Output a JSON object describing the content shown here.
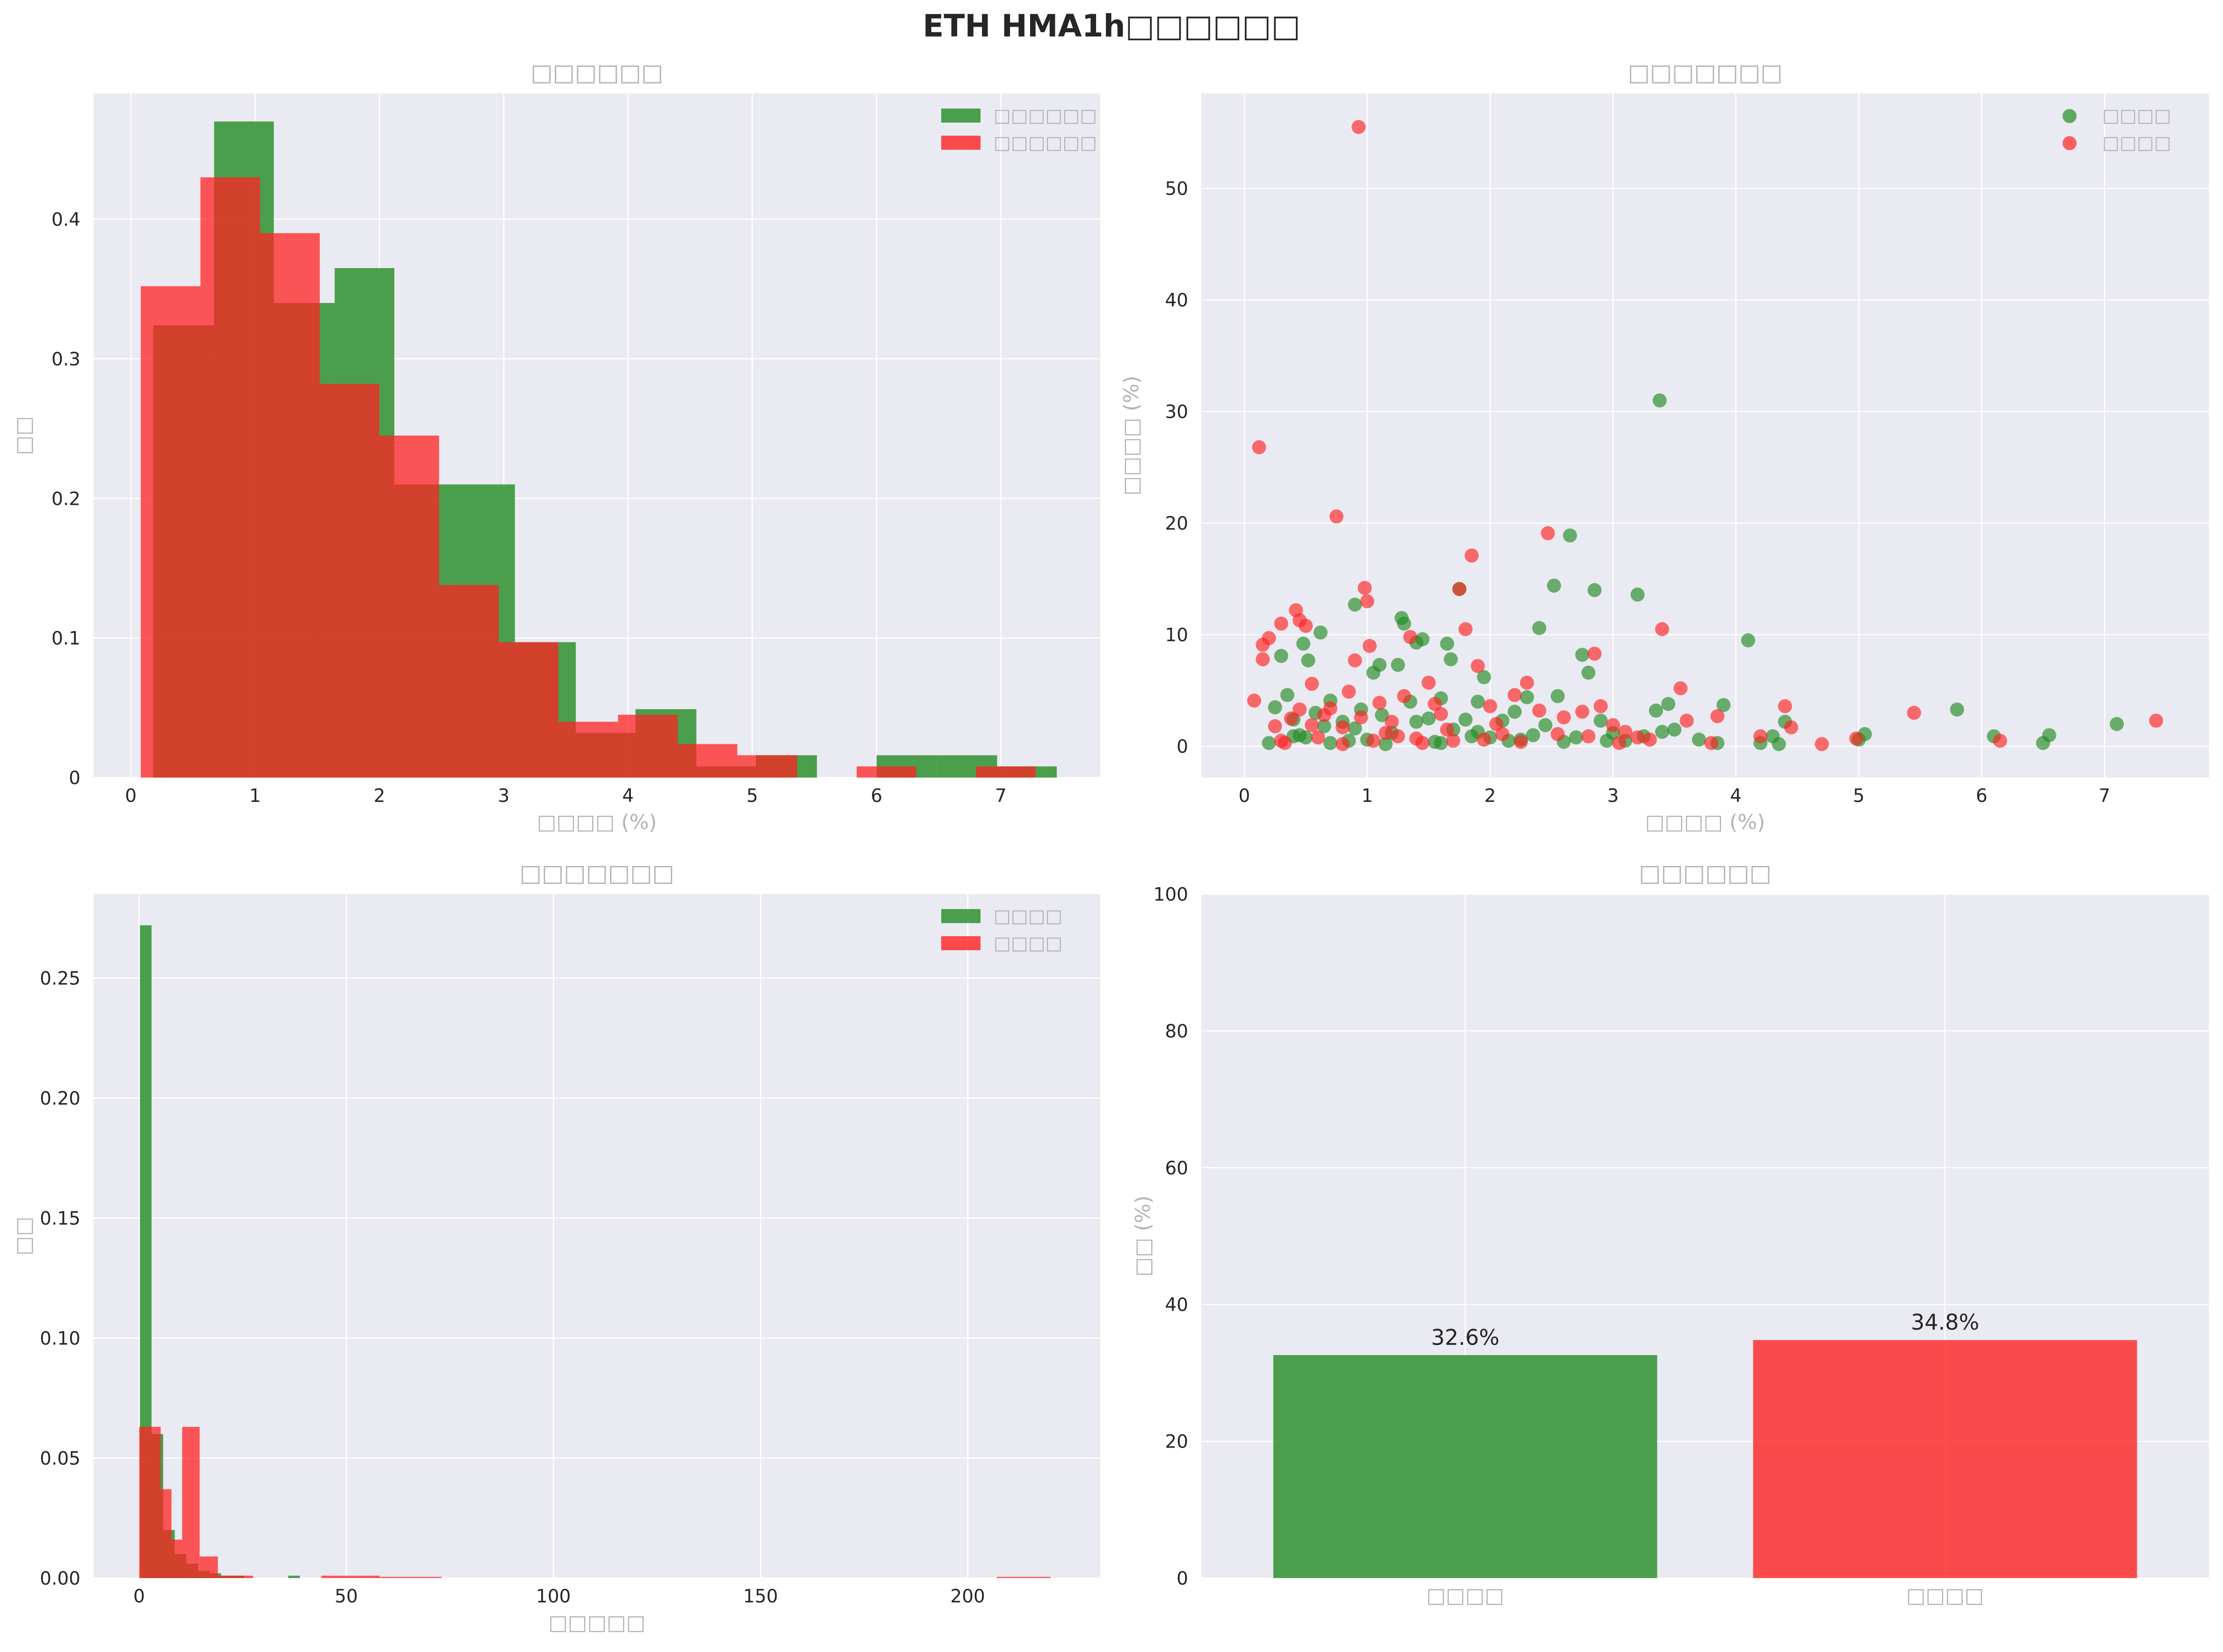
{
  "figure": {
    "title": "ETH HMA1h□□□□□□",
    "colors": {
      "green": "#228b22",
      "red": "#ff2222",
      "overlap": "#c5301a",
      "panel_bg": "#eaeaf2"
    }
  },
  "chart_data": [
    {
      "id": "hist1",
      "type": "bar",
      "title": "□□□□□□",
      "xlabel": "□□□□ (%)",
      "ylabel": "□□",
      "xlim": [
        -0.3,
        7.8
      ],
      "ylim": [
        0,
        0.49
      ],
      "xticks": [
        0,
        1,
        2,
        3,
        4,
        5,
        6,
        7
      ],
      "yticks": [
        0.0,
        0.1,
        0.2,
        0.3,
        0.4
      ],
      "legend_position": "top-right",
      "series": [
        {
          "name": "□□□□□□",
          "color": "green",
          "bins": [
            [
              0.18,
              0.67,
              0.324
            ],
            [
              0.67,
              1.15,
              0.47
            ],
            [
              1.15,
              1.64,
              0.34
            ],
            [
              1.64,
              2.12,
              0.365
            ],
            [
              2.12,
              2.61,
              0.21
            ],
            [
              2.61,
              3.09,
              0.21
            ],
            [
              3.09,
              3.58,
              0.097
            ],
            [
              3.58,
              4.06,
              0.032
            ],
            [
              4.06,
              4.55,
              0.049
            ],
            [
              4.55,
              5.03,
              0.008
            ],
            [
              5.03,
              5.52,
              0.016
            ],
            [
              5.52,
              6.0,
              0.0
            ],
            [
              6.0,
              6.48,
              0.016
            ],
            [
              6.48,
              6.97,
              0.016
            ],
            [
              6.97,
              7.45,
              0.008
            ]
          ]
        },
        {
          "name": "□□□□□□",
          "color": "red",
          "bins": [
            [
              0.08,
              0.56,
              0.352
            ],
            [
              0.56,
              1.04,
              0.43
            ],
            [
              1.04,
              1.52,
              0.39
            ],
            [
              1.52,
              2.0,
              0.282
            ],
            [
              2.0,
              2.48,
              0.245
            ],
            [
              2.48,
              2.96,
              0.138
            ],
            [
              2.96,
              3.44,
              0.097
            ],
            [
              3.44,
              3.92,
              0.04
            ],
            [
              3.92,
              4.4,
              0.045
            ],
            [
              4.4,
              4.88,
              0.024
            ],
            [
              4.88,
              5.36,
              0.016
            ],
            [
              5.36,
              5.84,
              0.0
            ],
            [
              5.84,
              6.32,
              0.008
            ],
            [
              6.32,
              6.8,
              0.0
            ],
            [
              6.8,
              7.28,
              0.008
            ]
          ]
        }
      ]
    },
    {
      "id": "scatter",
      "type": "scatter",
      "title": "□□□□□□□",
      "xlabel": "□□□□ (%)",
      "ylabel": "□□□□ (%)",
      "xlim": [
        -0.35,
        7.85
      ],
      "ylim": [
        -2.8,
        58.5
      ],
      "xticks": [
        0,
        1,
        2,
        3,
        4,
        5,
        6,
        7
      ],
      "yticks": [
        0,
        10,
        20,
        30,
        40,
        50
      ],
      "legend_position": "top-right",
      "series": [
        {
          "name": "□□□□",
          "color": "green",
          "points": [
            [
              0.2,
              0.3
            ],
            [
              0.25,
              3.5
            ],
            [
              0.3,
              8.1
            ],
            [
              0.35,
              4.6
            ],
            [
              0.4,
              2.4
            ],
            [
              0.45,
              1.0
            ],
            [
              0.48,
              9.2
            ],
            [
              0.5,
              0.8
            ],
            [
              0.52,
              7.7
            ],
            [
              0.58,
              3.0
            ],
            [
              0.62,
              10.2
            ],
            [
              0.65,
              1.8
            ],
            [
              0.7,
              4.1
            ],
            [
              0.8,
              2.2
            ],
            [
              0.85,
              0.5
            ],
            [
              0.9,
              12.7
            ],
            [
              0.95,
              3.3
            ],
            [
              1.0,
              0.6
            ],
            [
              1.05,
              6.6
            ],
            [
              1.1,
              7.3
            ],
            [
              1.12,
              2.8
            ],
            [
              1.2,
              1.2
            ],
            [
              1.25,
              7.3
            ],
            [
              1.28,
              11.5
            ],
            [
              1.3,
              11.0
            ],
            [
              1.35,
              4.0
            ],
            [
              1.4,
              9.3
            ],
            [
              1.45,
              9.6
            ],
            [
              1.5,
              2.5
            ],
            [
              1.55,
              0.4
            ],
            [
              1.6,
              4.3
            ],
            [
              1.65,
              9.2
            ],
            [
              1.68,
              7.8
            ],
            [
              1.7,
              1.5
            ],
            [
              1.75,
              14.1
            ],
            [
              1.8,
              2.4
            ],
            [
              1.85,
              0.9
            ],
            [
              1.9,
              4.0
            ],
            [
              1.95,
              6.2
            ],
            [
              2.0,
              0.8
            ],
            [
              2.1,
              2.3
            ],
            [
              2.2,
              3.1
            ],
            [
              2.25,
              0.6
            ],
            [
              2.3,
              4.4
            ],
            [
              2.4,
              10.6
            ],
            [
              2.45,
              1.9
            ],
            [
              2.52,
              14.4
            ],
            [
              2.55,
              4.5
            ],
            [
              2.6,
              0.4
            ],
            [
              2.65,
              18.9
            ],
            [
              2.75,
              8.2
            ],
            [
              2.8,
              6.6
            ],
            [
              2.85,
              14.0
            ],
            [
              2.9,
              2.3
            ],
            [
              3.0,
              1.2
            ],
            [
              3.1,
              0.5
            ],
            [
              3.2,
              13.6
            ],
            [
              3.25,
              0.9
            ],
            [
              3.35,
              3.2
            ],
            [
              3.38,
              31.0
            ],
            [
              3.45,
              3.8
            ],
            [
              3.5,
              1.5
            ],
            [
              3.7,
              0.6
            ],
            [
              3.85,
              0.3
            ],
            [
              3.9,
              3.7
            ],
            [
              4.1,
              9.5
            ],
            [
              4.2,
              0.3
            ],
            [
              4.3,
              0.9
            ],
            [
              4.35,
              0.2
            ],
            [
              4.4,
              2.2
            ],
            [
              5.05,
              1.1
            ],
            [
              5.0,
              0.6
            ],
            [
              5.8,
              3.3
            ],
            [
              6.1,
              0.9
            ],
            [
              6.5,
              0.3
            ],
            [
              6.55,
              1.0
            ],
            [
              7.1,
              2.0
            ],
            [
              0.7,
              0.3
            ],
            [
              1.15,
              0.2
            ],
            [
              1.6,
              0.3
            ],
            [
              2.15,
              0.5
            ],
            [
              2.7,
              0.8
            ],
            [
              0.4,
              0.9
            ],
            [
              0.9,
              1.6
            ],
            [
              1.4,
              2.2
            ],
            [
              1.9,
              1.3
            ],
            [
              2.35,
              1.0
            ],
            [
              2.95,
              0.5
            ],
            [
              3.4,
              1.3
            ]
          ]
        },
        {
          "name": "□□□□",
          "color": "red",
          "points": [
            [
              0.08,
              4.1
            ],
            [
              0.12,
              26.8
            ],
            [
              0.15,
              7.8
            ],
            [
              0.15,
              9.1
            ],
            [
              0.2,
              9.7
            ],
            [
              0.25,
              1.8
            ],
            [
              0.3,
              11.0
            ],
            [
              0.33,
              0.3
            ],
            [
              0.38,
              2.5
            ],
            [
              0.42,
              12.2
            ],
            [
              0.45,
              11.3
            ],
            [
              0.5,
              10.8
            ],
            [
              0.55,
              5.6
            ],
            [
              0.6,
              0.8
            ],
            [
              0.7,
              3.4
            ],
            [
              0.75,
              20.6
            ],
            [
              0.8,
              1.7
            ],
            [
              0.85,
              4.9
            ],
            [
              0.9,
              7.7
            ],
            [
              0.93,
              55.5
            ],
            [
              0.98,
              14.2
            ],
            [
              1.0,
              13.0
            ],
            [
              1.02,
              9.0
            ],
            [
              1.05,
              0.5
            ],
            [
              1.1,
              3.9
            ],
            [
              1.2,
              2.2
            ],
            [
              1.3,
              4.5
            ],
            [
              1.35,
              9.8
            ],
            [
              1.4,
              0.7
            ],
            [
              1.5,
              5.7
            ],
            [
              1.6,
              2.9
            ],
            [
              1.7,
              0.5
            ],
            [
              1.75,
              14.1
            ],
            [
              1.8,
              10.5
            ],
            [
              1.85,
              17.1
            ],
            [
              1.9,
              7.2
            ],
            [
              2.0,
              3.6
            ],
            [
              2.1,
              1.1
            ],
            [
              2.2,
              4.6
            ],
            [
              2.3,
              5.7
            ],
            [
              2.4,
              3.2
            ],
            [
              2.47,
              19.1
            ],
            [
              2.6,
              2.6
            ],
            [
              2.75,
              3.1
            ],
            [
              2.85,
              8.3
            ],
            [
              2.9,
              3.6
            ],
            [
              3.0,
              1.9
            ],
            [
              3.1,
              1.3
            ],
            [
              3.2,
              0.8
            ],
            [
              3.3,
              0.6
            ],
            [
              3.4,
              10.5
            ],
            [
              3.55,
              5.2
            ],
            [
              3.6,
              2.3
            ],
            [
              3.8,
              0.3
            ],
            [
              3.85,
              2.7
            ],
            [
              4.2,
              0.9
            ],
            [
              4.4,
              3.6
            ],
            [
              4.45,
              1.7
            ],
            [
              4.7,
              0.2
            ],
            [
              4.98,
              0.7
            ],
            [
              5.45,
              3.0
            ],
            [
              6.15,
              0.5
            ],
            [
              7.42,
              2.3
            ],
            [
              0.3,
              0.5
            ],
            [
              0.55,
              1.9
            ],
            [
              0.8,
              0.2
            ],
            [
              1.15,
              1.2
            ],
            [
              1.45,
              0.3
            ],
            [
              1.95,
              0.6
            ],
            [
              2.25,
              0.4
            ],
            [
              2.55,
              1.1
            ],
            [
              2.8,
              0.9
            ],
            [
              3.05,
              0.3
            ],
            [
              0.65,
              2.8
            ],
            [
              1.25,
              0.9
            ],
            [
              1.65,
              1.5
            ],
            [
              2.05,
              2.0
            ],
            [
              0.45,
              3.3
            ],
            [
              0.95,
              2.6
            ],
            [
              1.55,
              3.8
            ]
          ]
        }
      ]
    },
    {
      "id": "hist2",
      "type": "bar",
      "title": "□□□□□□□",
      "xlabel": "□□□□□",
      "ylabel": "□□",
      "xlim": [
        -11,
        232
      ],
      "ylim": [
        0,
        0.285
      ],
      "xticks": [
        0,
        50,
        100,
        150,
        200
      ],
      "yticks": [
        0.0,
        0.05,
        0.1,
        0.15,
        0.2,
        0.25
      ],
      "ytick_labels": [
        "0.00",
        "0.05",
        "0.10",
        "0.15",
        "0.20",
        "0.25"
      ],
      "legend_position": "top-right",
      "series": [
        {
          "name": "□□□□",
          "color": "green",
          "bins": [
            [
              0.2,
              3.0,
              0.272
            ],
            [
              3.0,
              5.8,
              0.06
            ],
            [
              5.8,
              8.6,
              0.02
            ],
            [
              8.6,
              11.4,
              0.01
            ],
            [
              11.4,
              14.2,
              0.006
            ],
            [
              14.2,
              17.0,
              0.003
            ],
            [
              17.0,
              19.8,
              0.002
            ],
            [
              19.8,
              22.6,
              0.001
            ],
            [
              22.6,
              25.4,
              0.001
            ],
            [
              36.0,
              38.8,
              0.001
            ]
          ]
        },
        {
          "name": "□□□□",
          "color": "red",
          "bins": [
            [
              0.0,
              2.6,
              0.063
            ],
            [
              2.6,
              5.2,
              0.063
            ],
            [
              5.2,
              7.8,
              0.037
            ],
            [
              7.8,
              10.4,
              0.016
            ],
            [
              10.4,
              14.6,
              0.063
            ],
            [
              14.6,
              19.0,
              0.009
            ],
            [
              19.0,
              27.5,
              0.001
            ],
            [
              44.0,
              58.0,
              0.001
            ],
            [
              58.0,
              73.0,
              0.0005
            ],
            [
              207.0,
              220.0,
              0.0005
            ]
          ]
        }
      ]
    },
    {
      "id": "bars",
      "type": "bar",
      "title": "□□□□□□",
      "ylabel": "□□ (%)",
      "ylim": [
        0,
        100
      ],
      "yticks": [
        0,
        20,
        40,
        60,
        80,
        100
      ],
      "categories": [
        "□□□□",
        "□□□□"
      ],
      "values": [
        32.6,
        34.8
      ],
      "value_labels": [
        "32.6%",
        "34.8%"
      ],
      "bar_colors": [
        "green",
        "red"
      ]
    }
  ]
}
